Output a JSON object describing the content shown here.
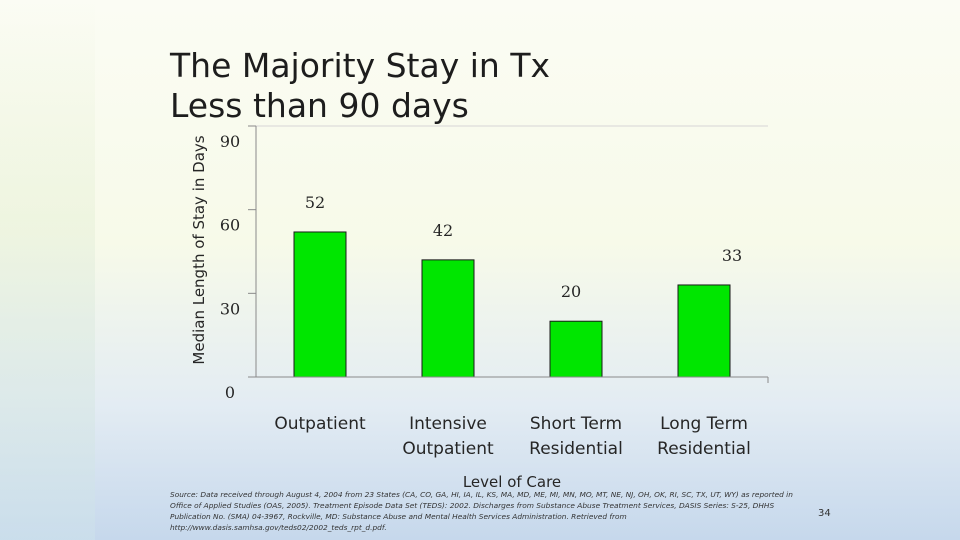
{
  "slide": {
    "title": "The Majority Stay in Tx\nLess than 90 days",
    "source": "Source: Data received through August 4, 2004 from 23 States (CA, CO, GA, HI, IA, IL, KS, MA, MD, ME, MI, MN, MO, MT, NE, NJ, OH, OK, RI, SC, TX, UT, WY) as reported in Office of Applied Studies (OAS, 2005). Treatment Episode Data Set (TEDS): 2002. Discharges from Substance Abuse Treatment Services, DASIS Series: S-25, DHHS Publication No. (SMA) 04-3967, Rockville, MD: Substance Abuse and Mental Health Services Administration. Retrieved from http://www.dasis.samhsa.gov/teds02/2002_teds_rpt_d.pdf.",
    "page_number": "34"
  },
  "chart_data": {
    "type": "bar",
    "categories": [
      [
        "Outpatient"
      ],
      [
        "Intensive",
        "Outpatient"
      ],
      [
        "Short Term",
        "Residential"
      ],
      [
        "Long Term",
        "Residential"
      ]
    ],
    "values": [
      52,
      42,
      20,
      33
    ],
    "data_labels": [
      "52",
      "42",
      "20",
      "33"
    ],
    "yticks": [
      {
        "value": 0,
        "label": "0"
      },
      {
        "value": 30,
        "label": "30"
      },
      {
        "value": 60,
        "label": "60"
      },
      {
        "value": 90,
        "label": "90"
      }
    ],
    "ylim": [
      0,
      90
    ],
    "xlabel": "Level of Care",
    "ylabel": "Median Length of Stay in Days",
    "bar_color": "#00e600",
    "grid": true,
    "legend": "none"
  }
}
